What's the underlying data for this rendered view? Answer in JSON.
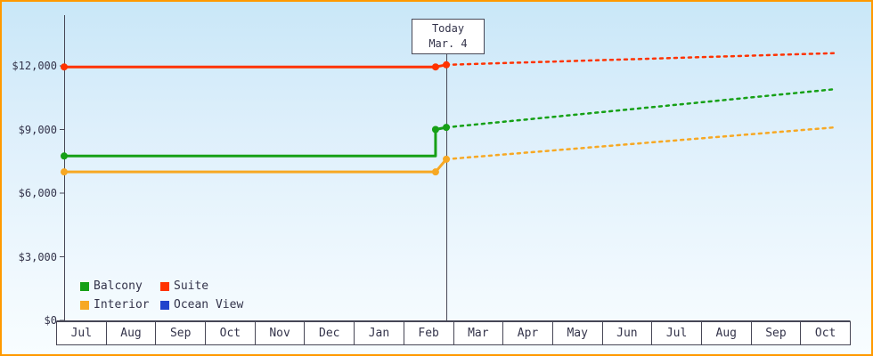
{
  "frame": {
    "border_color": "#ff9900"
  },
  "chart_data": {
    "type": "line",
    "x_axis_months": [
      "Jul",
      "Aug",
      "Sep",
      "Oct",
      "Nov",
      "Dec",
      "Jan",
      "Feb",
      "Mar",
      "Apr",
      "May",
      "Jun",
      "Jul",
      "Aug",
      "Sep",
      "Oct"
    ],
    "ylim": [
      0,
      12000
    ],
    "y_ticks": [
      {
        "label": "$0",
        "value": 0
      },
      {
        "label": "$3,000",
        "value": 3000
      },
      {
        "label": "$6,000",
        "value": 6000
      },
      {
        "label": "$9,000",
        "value": 9000
      },
      {
        "label": "$12,000",
        "value": 12000
      }
    ],
    "grid": false,
    "today": {
      "label": "Today",
      "date": "Mar. 4",
      "x_fraction": 0.496
    },
    "series": [
      {
        "name": "Balcony",
        "color": "#16a016",
        "solid": [
          [
            0,
            7750
          ],
          [
            0.482,
            7750
          ],
          [
            0.482,
            9000
          ],
          [
            0.496,
            9100
          ]
        ],
        "dashed": [
          [
            0.496,
            9100
          ],
          [
            1,
            10900
          ]
        ],
        "markers": [
          [
            0,
            7750
          ],
          [
            0.482,
            9000
          ],
          [
            0.496,
            9100
          ]
        ]
      },
      {
        "name": "Suite",
        "color": "#ff3300",
        "solid": [
          [
            0,
            11950
          ],
          [
            0.482,
            11950
          ],
          [
            0.496,
            12050
          ]
        ],
        "dashed": [
          [
            0.496,
            12050
          ],
          [
            1,
            12600
          ]
        ],
        "markers": [
          [
            0,
            11950
          ],
          [
            0.482,
            11950
          ],
          [
            0.496,
            12050
          ]
        ]
      },
      {
        "name": "Interior",
        "color": "#f7a823",
        "solid": [
          [
            0,
            7000
          ],
          [
            0.482,
            7000
          ],
          [
            0.496,
            7600
          ]
        ],
        "dashed": [
          [
            0.496,
            7600
          ],
          [
            1,
            9100
          ]
        ],
        "markers": [
          [
            0,
            7000
          ],
          [
            0.482,
            7000
          ],
          [
            0.496,
            7600
          ]
        ]
      },
      {
        "name": "Ocean View",
        "color": "#2244cc",
        "solid": [],
        "dashed": [],
        "markers": []
      }
    ],
    "legend": {
      "position": "bottom-left",
      "items": [
        "Balcony",
        "Suite",
        "Interior",
        "Ocean View"
      ]
    }
  }
}
